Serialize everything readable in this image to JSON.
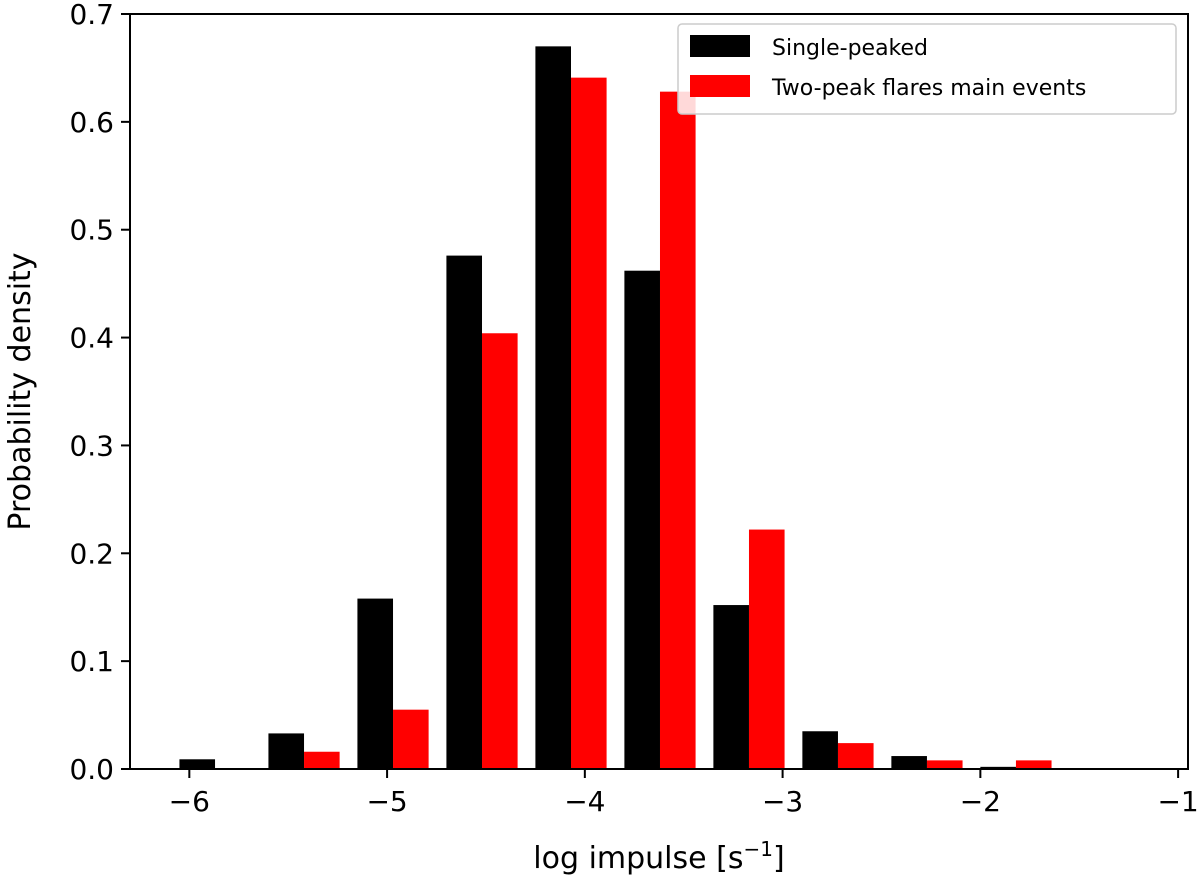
{
  "chart_data": {
    "type": "bar",
    "title": "",
    "xlabel": "log impulse [s",
    "xlabel_superscript": "−1",
    "xlabel_close": "]",
    "ylabel": "Probability density",
    "xlim": [
      -6.3,
      -0.95
    ],
    "ylim": [
      0,
      0.7
    ],
    "xticks": [
      -6,
      -5,
      -4,
      -3,
      -2,
      -1
    ],
    "xtick_labels": [
      "−6",
      "−5",
      "−4",
      "−3",
      "−2",
      "−1"
    ],
    "yticks": [
      0.0,
      0.1,
      0.2,
      0.3,
      0.4,
      0.5,
      0.6,
      0.7
    ],
    "ytick_labels": [
      "0.0",
      "0.1",
      "0.2",
      "0.3",
      "0.4",
      "0.5",
      "0.6",
      "0.7"
    ],
    "bin_starts": [
      -6.05,
      -5.6,
      -5.15,
      -4.7,
      -4.25,
      -3.8,
      -3.35,
      -2.9,
      -2.45,
      -2.0,
      -1.55
    ],
    "bar_width": 0.18,
    "legend_position": "top-right",
    "grid": false,
    "series": [
      {
        "name": "Single-peaked",
        "color": "#000000",
        "values": [
          0.009,
          0.033,
          0.158,
          0.476,
          0.67,
          0.462,
          0.152,
          0.035,
          0.012,
          0.002,
          0.0
        ]
      },
      {
        "name": "Two-peak flares main events",
        "color": "#ff0000",
        "values": [
          0.0,
          0.016,
          0.055,
          0.404,
          0.641,
          0.628,
          0.222,
          0.024,
          0.008,
          0.008,
          0.0
        ]
      }
    ]
  }
}
